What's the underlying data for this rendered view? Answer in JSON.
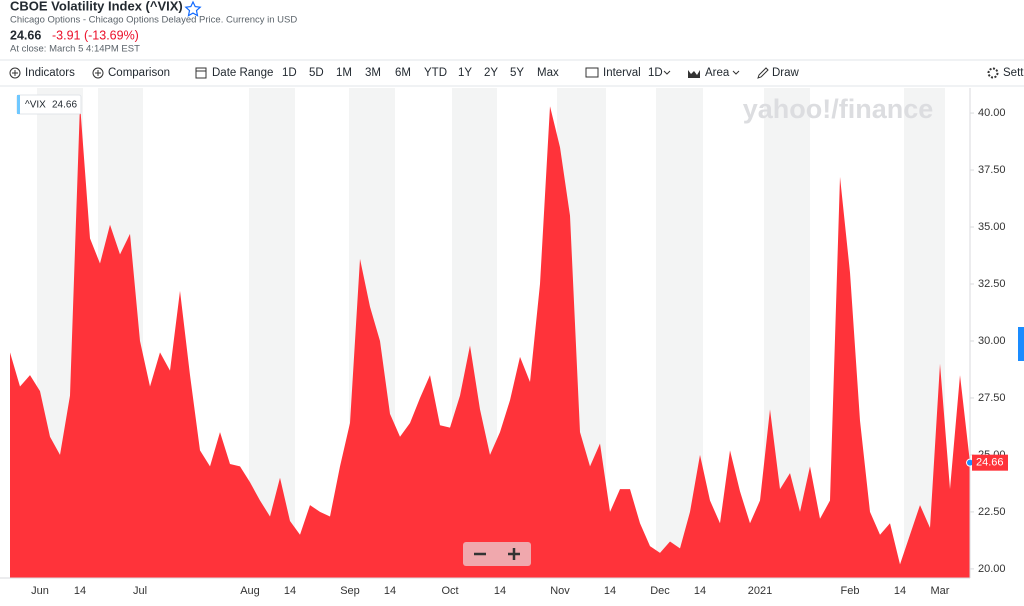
{
  "header": {
    "title": "CBOE Volatility Index (^VIX)",
    "subtitle": "Chicago Options - Chicago Options Delayed Price. Currency in USD",
    "price": "24.66",
    "change": "-3.91 (-13.69%)",
    "close_time": "At close: March 5 4:14PM EST"
  },
  "toolbar": {
    "indicators": "Indicators",
    "comparison": "Comparison",
    "date_range": "Date Range",
    "ranges": [
      "1D",
      "5D",
      "1M",
      "3M",
      "6M",
      "YTD",
      "1Y",
      "2Y",
      "5Y",
      "Max"
    ],
    "interval": "Interval",
    "interval_value": "1D",
    "chart_type": "Area",
    "draw": "Draw",
    "settings": "Sett"
  },
  "chart_data": {
    "type": "area",
    "watermark": "yahoo!/finance",
    "series": [
      {
        "name": "^VIX",
        "color": "#ff333a",
        "values": [
          29.5,
          28.0,
          28.5,
          27.8,
          25.8,
          25.0,
          27.6,
          40.4,
          34.5,
          33.4,
          35.1,
          33.8,
          34.7,
          30.0,
          28.0,
          29.5,
          28.7,
          32.2,
          28.5,
          25.2,
          24.5,
          26.0,
          24.6,
          24.5,
          23.8,
          23.0,
          22.3,
          24.0,
          22.1,
          21.5,
          22.8,
          22.5,
          22.3,
          24.5,
          26.4,
          33.6,
          31.5,
          30.0,
          26.8,
          25.8,
          26.4,
          27.5,
          28.5,
          26.3,
          26.2,
          27.6,
          29.8,
          27.0,
          25.0,
          26.0,
          27.4,
          29.3,
          28.2,
          32.5,
          40.3,
          38.5,
          35.5,
          26.0,
          24.5,
          25.5,
          22.5,
          23.5,
          23.5,
          22.0,
          21.0,
          20.7,
          21.2,
          20.9,
          22.5,
          25.0,
          23.0,
          22.0,
          25.2,
          23.4,
          22.0,
          23.0,
          27.0,
          23.5,
          24.2,
          22.5,
          24.5,
          22.2,
          23.0,
          37.2,
          33.0,
          26.5,
          22.5,
          21.5,
          22.0,
          20.2,
          21.5,
          22.8,
          21.8,
          29.0,
          23.5,
          28.5,
          24.66
        ]
      }
    ],
    "categories": [
      null,
      null,
      null,
      "Jun",
      null,
      null,
      null,
      "14",
      null,
      null,
      null,
      null,
      null,
      "Jul",
      null,
      null,
      null,
      null,
      null,
      null,
      null,
      null,
      null,
      null,
      "Aug",
      null,
      null,
      null,
      "14",
      null,
      null,
      null,
      null,
      null,
      "Sep",
      null,
      null,
      null,
      "14",
      null,
      null,
      null,
      null,
      null,
      "Oct",
      null,
      null,
      null,
      null,
      "14",
      null,
      null,
      null,
      null,
      null,
      "Nov",
      null,
      null,
      null,
      null,
      "14",
      null,
      null,
      null,
      null,
      "Dec",
      null,
      null,
      null,
      "14",
      null,
      null,
      null,
      null,
      null,
      "2021",
      null,
      null,
      null,
      null,
      null,
      null,
      null,
      null,
      "Feb",
      null,
      null,
      null,
      null,
      "14",
      null,
      null,
      null,
      "Mar",
      null,
      null,
      null
    ],
    "ylim": [
      19.6,
      41.1
    ],
    "yticks": [
      {
        "value": 20,
        "label": "20.00"
      },
      {
        "value": 22.5,
        "label": "22.50"
      },
      {
        "value": 25,
        "label": "25.00"
      },
      {
        "value": 27.5,
        "label": "27.50"
      },
      {
        "value": 30,
        "label": "30.00"
      },
      {
        "value": 32.5,
        "label": "32.50"
      },
      {
        "value": 35,
        "label": "35.00"
      },
      {
        "value": 37.5,
        "label": "37.50"
      },
      {
        "value": 40,
        "label": "40.00"
      }
    ]
  }
}
